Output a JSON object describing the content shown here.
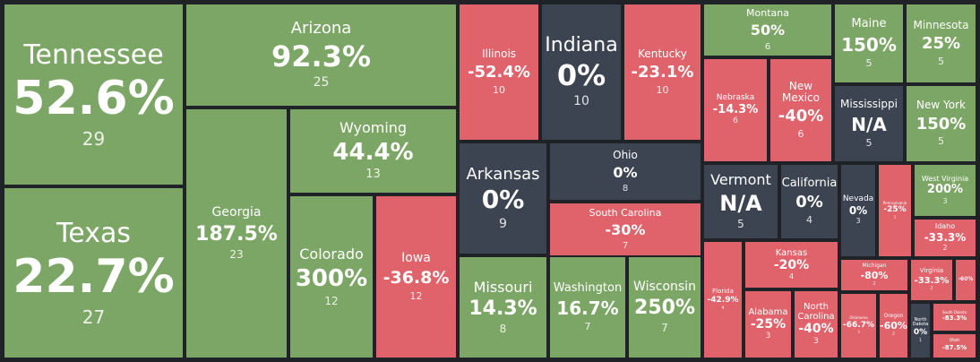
{
  "colors": {
    "positive": "#7ca665",
    "negative": "#e0626a",
    "neutral": "#3c4452",
    "border": "#1f2328"
  },
  "chart_data": {
    "type": "treemap",
    "tiles": [
      {
        "name": "Tennessee",
        "value": "52.6%",
        "count": 29,
        "status": "positive"
      },
      {
        "name": "Texas",
        "value": "22.7%",
        "count": 27,
        "status": "positive"
      },
      {
        "name": "Arizona",
        "value": "92.3%",
        "count": 25,
        "status": "positive"
      },
      {
        "name": "Georgia",
        "value": "187.5%",
        "count": 23,
        "status": "positive"
      },
      {
        "name": "Wyoming",
        "value": "44.4%",
        "count": 13,
        "status": "positive"
      },
      {
        "name": "Colorado",
        "value": "300%",
        "count": 12,
        "status": "positive"
      },
      {
        "name": "Iowa",
        "value": "-36.8%",
        "count": 12,
        "status": "negative"
      },
      {
        "name": "Illinois",
        "value": "-52.4%",
        "count": 10,
        "status": "negative"
      },
      {
        "name": "Indiana",
        "value": "0%",
        "count": 10,
        "status": "neutral"
      },
      {
        "name": "Kentucky",
        "value": "-23.1%",
        "count": 10,
        "status": "negative"
      },
      {
        "name": "Arkansas",
        "value": "0%",
        "count": 9,
        "status": "neutral"
      },
      {
        "name": "Ohio",
        "value": "0%",
        "count": 8,
        "status": "neutral"
      },
      {
        "name": "South Carolina",
        "value": "-30%",
        "count": 7,
        "status": "negative"
      },
      {
        "name": "Missouri",
        "value": "14.3%",
        "count": 8,
        "status": "positive"
      },
      {
        "name": "Washington",
        "value": "16.7%",
        "count": 7,
        "status": "positive"
      },
      {
        "name": "Wisconsin",
        "value": "250%",
        "count": 7,
        "status": "positive"
      },
      {
        "name": "Montana",
        "value": "50%",
        "count": 6,
        "status": "positive"
      },
      {
        "name": "Nebraska",
        "value": "-14.3%",
        "count": 6,
        "status": "negative"
      },
      {
        "name": "New Mexico",
        "value": "-40%",
        "count": 6,
        "status": "negative"
      },
      {
        "name": "Maine",
        "value": "150%",
        "count": 5,
        "status": "positive"
      },
      {
        "name": "Minnesota",
        "value": "25%",
        "count": 5,
        "status": "positive"
      },
      {
        "name": "Mississippi",
        "value": "N/A",
        "count": 5,
        "status": "neutral"
      },
      {
        "name": "New York",
        "value": "150%",
        "count": 5,
        "status": "positive"
      },
      {
        "name": "Vermont",
        "value": "N/A",
        "count": 5,
        "status": "neutral"
      },
      {
        "name": "California",
        "value": "0%",
        "count": 4,
        "status": "neutral"
      },
      {
        "name": "Nevada",
        "value": "0%",
        "count": 3,
        "status": "neutral"
      },
      {
        "name": "Pennsylvania",
        "value": "-25%",
        "count": 3,
        "status": "negative"
      },
      {
        "name": "West Virginia",
        "value": "200%",
        "count": 3,
        "status": "positive"
      },
      {
        "name": "Idaho",
        "value": "-33.3%",
        "count": 2,
        "status": "negative"
      },
      {
        "name": "Kansas",
        "value": "-20%",
        "count": 4,
        "status": "negative"
      },
      {
        "name": "Florida",
        "value": "-42.9%",
        "count": 4,
        "status": "negative"
      },
      {
        "name": "Alabama",
        "value": "-25%",
        "count": 3,
        "status": "negative"
      },
      {
        "name": "North Carolina",
        "value": "-40%",
        "count": 3,
        "status": "negative"
      },
      {
        "name": "Michigan",
        "value": "-80%",
        "count": 2,
        "status": "negative"
      },
      {
        "name": "Virginia",
        "value": "-33.3%",
        "count": 2,
        "status": "negative"
      },
      {
        "name": "",
        "value": "-60%",
        "count": "",
        "status": "negative"
      },
      {
        "name": "Oklahoma",
        "value": "-66.7%",
        "count": 3,
        "status": "negative"
      },
      {
        "name": "Oregon",
        "value": "-60%",
        "count": 2,
        "status": "negative"
      },
      {
        "name": "North Dakota",
        "value": "0%",
        "count": 1,
        "status": "neutral"
      },
      {
        "name": "South Dakota",
        "value": "-83.3%",
        "count": "",
        "status": "negative"
      },
      {
        "name": "Utah",
        "value": "-87.5%",
        "count": "",
        "status": "negative"
      }
    ]
  }
}
